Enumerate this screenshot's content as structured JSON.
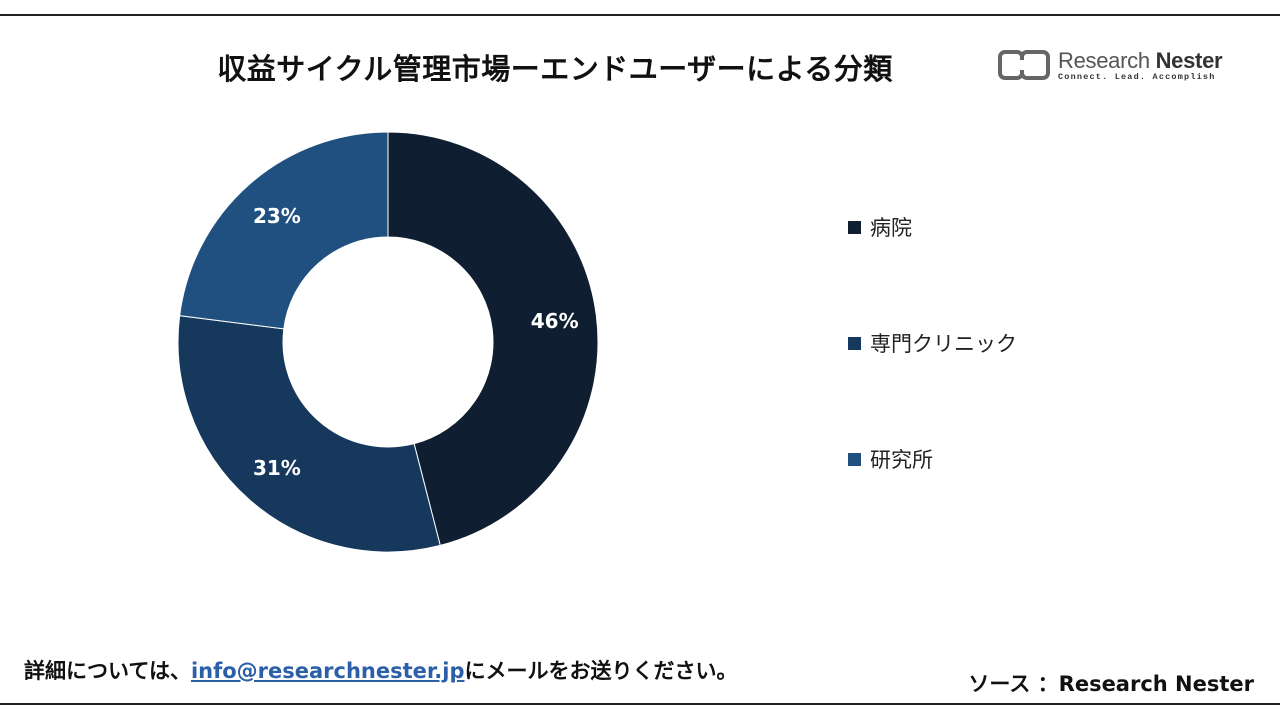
{
  "title": "収益サイクル管理市場ーエンドユーザーによる分類",
  "logo": {
    "name_bold": "Research",
    "name_rest": "Nester",
    "tagline": "Connect. Lead. Accomplish"
  },
  "chart_data": {
    "type": "pie",
    "variant": "donut",
    "categories": [
      "病院",
      "専門クリニック",
      "研究所"
    ],
    "values": [
      46,
      31,
      23
    ],
    "labels": [
      "46%",
      "31%",
      "23%"
    ],
    "colors": [
      "#0f1f31",
      "#16385c",
      "#1f5080"
    ],
    "legend_position": "right"
  },
  "footer": {
    "prefix": "詳細については、",
    "email": "info@researchnester.jp",
    "suffix": "にメールをお送りください。",
    "source": "ソース ：Research Nester"
  }
}
